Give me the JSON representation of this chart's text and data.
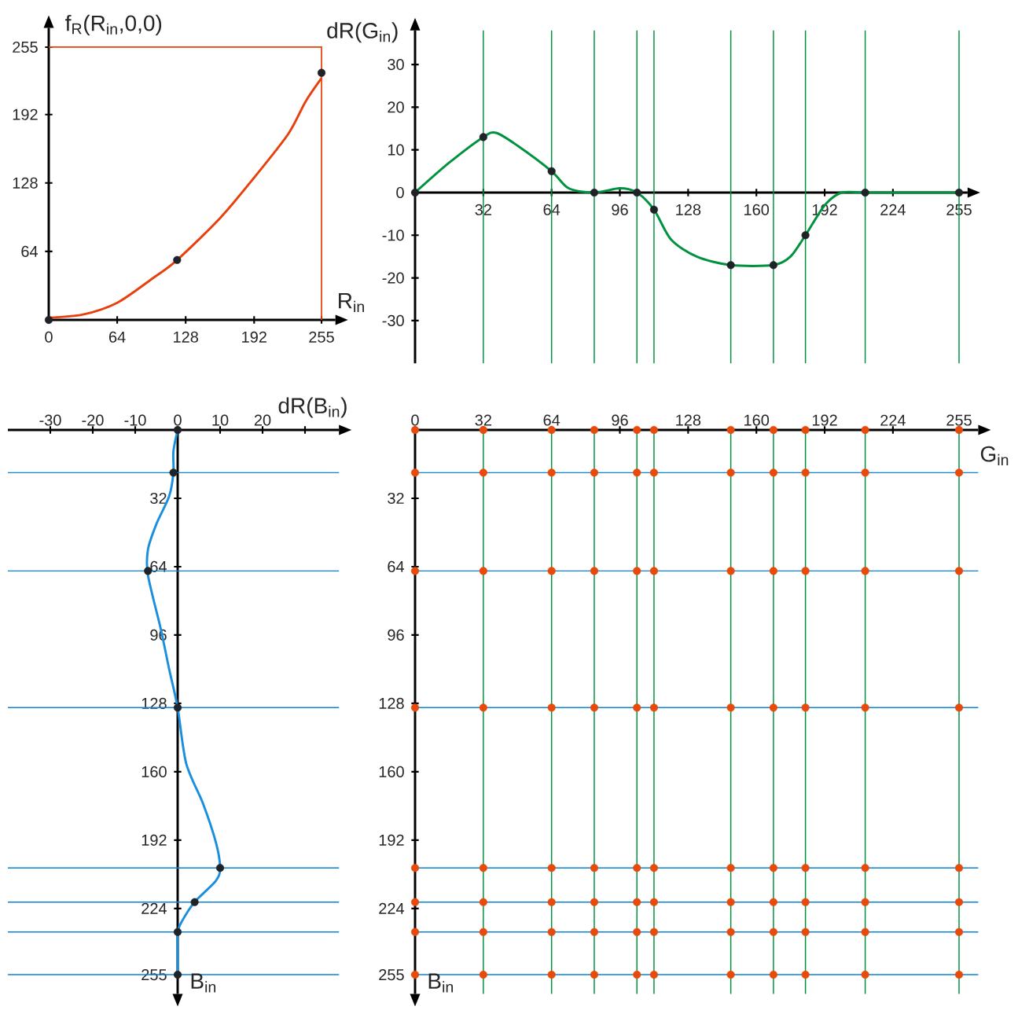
{
  "chart_data": [
    {
      "type": "line",
      "xlabel": "R$_{in}$",
      "ylabel": "f$_{R}$(R$_{in}$,0,0)",
      "xlim": [
        0,
        268
      ],
      "ylim": [
        0,
        273
      ],
      "xticks": [
        0,
        64,
        128,
        192,
        255
      ],
      "yticks": [
        64,
        128,
        192,
        255
      ],
      "series": [
        {
          "type": "step",
          "color": "#e8400c",
          "marker": "none",
          "x": [
            0,
            255
          ],
          "values": [
            255,
            0
          ]
        },
        {
          "type": "line",
          "color": "#e8400c",
          "marker": "none",
          "x": [
            0,
            32,
            64,
            96,
            120,
            160,
            192,
            224,
            240,
            255
          ],
          "values": [
            2,
            5,
            16,
            38,
            56,
            95,
            133,
            174,
            204,
            226
          ]
        },
        {
          "type": "scatter",
          "color": "#1f2328",
          "marker": "circle",
          "x": [
            0,
            120,
            255
          ],
          "values": [
            0,
            56,
            231
          ]
        }
      ]
    },
    {
      "type": "line",
      "ylabel": "dR(G$_{in}$)",
      "xlim": [
        0,
        259
      ],
      "ylim": [
        -40,
        38
      ],
      "xticks": [
        32,
        64,
        96,
        128,
        160,
        192,
        224,
        255
      ],
      "yticks": [
        -30,
        -20,
        -10,
        0,
        10,
        20,
        30
      ],
      "ref_lines": [
        {
          "axis": "x",
          "value": 32,
          "color": "#00913f"
        },
        {
          "axis": "x",
          "value": 64,
          "color": "#00913f"
        },
        {
          "axis": "x",
          "value": 84,
          "color": "#00913f"
        },
        {
          "axis": "x",
          "value": 104,
          "color": "#00913f"
        },
        {
          "axis": "x",
          "value": 112,
          "color": "#00913f"
        },
        {
          "axis": "x",
          "value": 148,
          "color": "#00913f"
        },
        {
          "axis": "x",
          "value": 168,
          "color": "#00913f"
        },
        {
          "axis": "x",
          "value": 183,
          "color": "#00913f"
        },
        {
          "axis": "x",
          "value": 211,
          "color": "#00913f"
        },
        {
          "axis": "x",
          "value": 255,
          "color": "#00913f"
        }
      ],
      "series": [
        {
          "type": "line",
          "color": "#00923f",
          "marker": "none",
          "x": [
            0,
            16,
            32,
            38,
            48,
            64,
            72,
            84,
            96,
            104,
            112,
            120,
            132,
            148,
            168,
            176,
            183,
            192,
            200,
            211,
            230,
            255
          ],
          "values": [
            0,
            7,
            13,
            14,
            11,
            5,
            1,
            0,
            1,
            0,
            -4,
            -11,
            -15,
            -17,
            -17,
            -15,
            -10,
            -3,
            0,
            0,
            0,
            0
          ]
        },
        {
          "type": "scatter",
          "color": "#1f2328",
          "marker": "circle",
          "x": [
            0,
            32,
            64,
            84,
            104,
            112,
            148,
            168,
            183,
            211,
            255
          ],
          "values": [
            0,
            13,
            5,
            0,
            0,
            -4,
            -17,
            -17,
            -10,
            0,
            0
          ]
        }
      ]
    },
    {
      "type": "line",
      "xlabel": "dR(B$_{in}$)",
      "ylabel": "B$_{in}$",
      "xlim": [
        -40,
        38
      ],
      "ylim": [
        264,
        0
      ],
      "xticks": [
        -30,
        -20,
        -10,
        0,
        10,
        20,
        {
          "value": 30,
          "label": null
        }
      ],
      "yticks": [
        32,
        64,
        96,
        128,
        160,
        192,
        224,
        255
      ],
      "ref_lines": [
        {
          "axis": "y",
          "value": 20,
          "color": "#0a84d6"
        },
        {
          "axis": "y",
          "value": 66,
          "color": "#0a84d6"
        },
        {
          "axis": "y",
          "value": 130,
          "color": "#0a84d6"
        },
        {
          "axis": "y",
          "value": 205,
          "color": "#0a84d6"
        },
        {
          "axis": "y",
          "value": 221,
          "color": "#0a84d6"
        },
        {
          "axis": "y",
          "value": 235,
          "color": "#0a84d6"
        },
        {
          "axis": "y",
          "value": 255,
          "color": "#0a84d6"
        }
      ],
      "series": [
        {
          "type": "line",
          "color": "#1a8fdd",
          "marker": "none",
          "x": [
            0,
            -1,
            -1,
            -2,
            -5,
            -7,
            -7,
            -4,
            -2,
            0,
            2,
            6,
            9,
            10,
            9,
            4,
            1,
            0,
            0,
            0
          ],
          "values": [
            0,
            10,
            20,
            31,
            44,
            56,
            68,
            93,
            112,
            130,
            156,
            175,
            193,
            205,
            211,
            221,
            230,
            235,
            245,
            255
          ]
        },
        {
          "type": "scatter",
          "color": "#1f2328",
          "marker": "circle",
          "x": [
            0,
            -1,
            -7,
            0,
            10,
            4,
            0,
            0
          ],
          "values": [
            0,
            20,
            66,
            130,
            205,
            221,
            235,
            255
          ]
        }
      ]
    },
    {
      "type": "scatter",
      "xlabel": "G$_{in}$",
      "ylabel": "B$_{in}$",
      "xlim": [
        0,
        264
      ],
      "ylim": [
        264,
        0
      ],
      "xticks": [
        0,
        32,
        64,
        96,
        128,
        160,
        192,
        224,
        255
      ],
      "yticks": [
        32,
        64,
        96,
        128,
        160,
        192,
        224,
        255
      ],
      "ref_lines": [
        {
          "axis": "x",
          "value": 32,
          "color": "#00913f"
        },
        {
          "axis": "x",
          "value": 64,
          "color": "#00913f"
        },
        {
          "axis": "x",
          "value": 84,
          "color": "#00913f"
        },
        {
          "axis": "x",
          "value": 104,
          "color": "#00913f"
        },
        {
          "axis": "x",
          "value": 112,
          "color": "#00913f"
        },
        {
          "axis": "x",
          "value": 148,
          "color": "#00913f"
        },
        {
          "axis": "x",
          "value": 168,
          "color": "#00913f"
        },
        {
          "axis": "x",
          "value": 183,
          "color": "#00913f"
        },
        {
          "axis": "x",
          "value": 211,
          "color": "#00913f"
        },
        {
          "axis": "x",
          "value": 255,
          "color": "#00913f"
        },
        {
          "axis": "y",
          "value": 20,
          "color": "#0a84d6"
        },
        {
          "axis": "y",
          "value": 66,
          "color": "#0a84d6"
        },
        {
          "axis": "y",
          "value": 130,
          "color": "#0a84d6"
        },
        {
          "axis": "y",
          "value": 205,
          "color": "#0a84d6"
        },
        {
          "axis": "y",
          "value": 221,
          "color": "#0a84d6"
        },
        {
          "axis": "y",
          "value": 235,
          "color": "#0a84d6"
        },
        {
          "axis": "y",
          "value": 255,
          "color": "#0a84d6"
        }
      ],
      "series": [
        {
          "color": "#e84a0c",
          "marker": "circle",
          "x": [
            0,
            32,
            64,
            84,
            104,
            112,
            148,
            168,
            183,
            211,
            255,
            0,
            32,
            64,
            84,
            104,
            112,
            148,
            168,
            183,
            211,
            255,
            0,
            32,
            64,
            84,
            104,
            112,
            148,
            168,
            183,
            211,
            255,
            0,
            32,
            64,
            84,
            104,
            112,
            148,
            168,
            183,
            211,
            255,
            0,
            32,
            64,
            84,
            104,
            112,
            148,
            168,
            183,
            211,
            255,
            0,
            32,
            64,
            84,
            104,
            112,
            148,
            168,
            183,
            211,
            255,
            0,
            32,
            64,
            84,
            104,
            112,
            148,
            168,
            183,
            211,
            255,
            0,
            32,
            64,
            84,
            104,
            112,
            148,
            168,
            183,
            211,
            255
          ],
          "values": [
            0,
            0,
            0,
            0,
            0,
            0,
            0,
            0,
            0,
            0,
            0,
            20,
            20,
            20,
            20,
            20,
            20,
            20,
            20,
            20,
            20,
            20,
            66,
            66,
            66,
            66,
            66,
            66,
            66,
            66,
            66,
            66,
            66,
            130,
            130,
            130,
            130,
            130,
            130,
            130,
            130,
            130,
            130,
            130,
            205,
            205,
            205,
            205,
            205,
            205,
            205,
            205,
            205,
            205,
            205,
            221,
            221,
            221,
            221,
            221,
            221,
            221,
            221,
            221,
            221,
            221,
            235,
            235,
            235,
            235,
            235,
            235,
            235,
            235,
            235,
            235,
            235,
            255,
            255,
            255,
            255,
            255,
            255,
            255,
            255,
            255,
            255,
            255
          ]
        }
      ]
    }
  ]
}
